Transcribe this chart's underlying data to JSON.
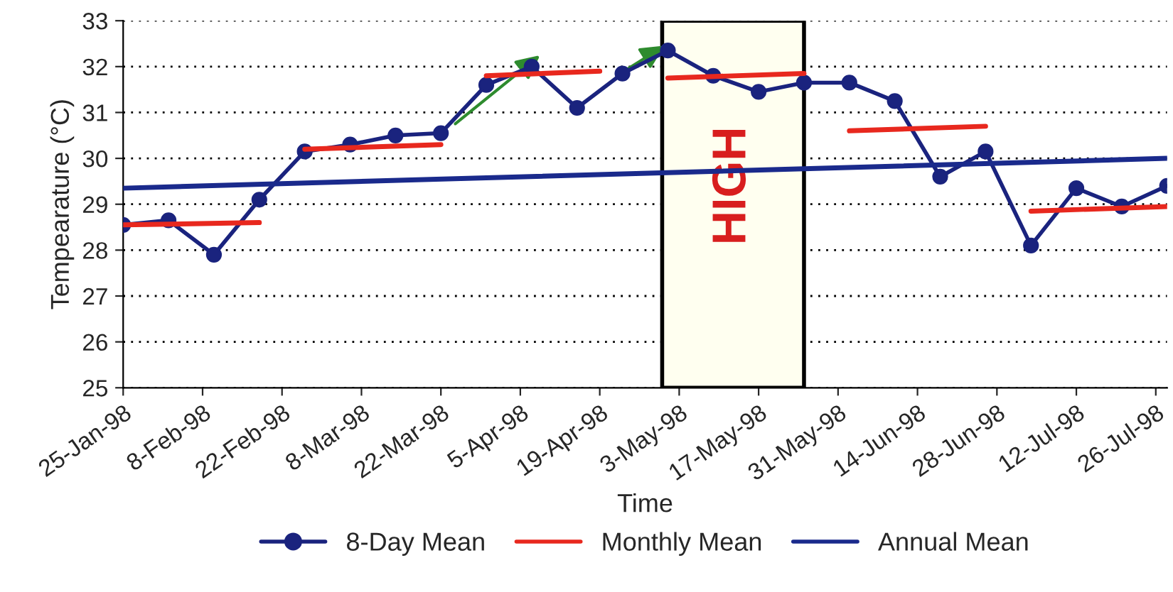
{
  "chart_data": {
    "type": "line",
    "xlabel": "Time",
    "ylabel": "Tempearature (°C)",
    "series": [
      {
        "name": "8-Day Mean",
        "color": "#1a237e",
        "marker": "circle",
        "x": [
          "1998-01-25",
          "1998-02-02",
          "1998-02-10",
          "1998-02-18",
          "1998-02-26",
          "1998-03-06",
          "1998-03-14",
          "1998-03-22",
          "1998-03-30",
          "1998-04-07",
          "1998-04-15",
          "1998-04-23",
          "1998-05-01",
          "1998-05-09",
          "1998-05-17",
          "1998-05-25",
          "1998-06-02",
          "1998-06-10",
          "1998-06-18",
          "1998-06-26",
          "1998-07-04",
          "1998-07-12",
          "1998-07-20",
          "1998-07-28"
        ],
        "values": [
          28.55,
          28.65,
          27.9,
          29.1,
          30.15,
          30.3,
          30.5,
          30.55,
          31.6,
          32.0,
          31.1,
          31.85,
          32.35,
          31.8,
          31.45,
          31.65,
          31.65,
          31.25,
          29.6,
          30.15,
          28.1,
          29.35,
          28.95,
          29.4
        ]
      },
      {
        "name": "Monthly Mean",
        "color": "#e8281e",
        "x": [
          "1998-01-25",
          "1998-02-18",
          "1998-02-22",
          "1998-02-26",
          "1998-03-22",
          "1998-03-26",
          "1998-03-30",
          "1998-04-19",
          "1998-04-25",
          "1998-05-01",
          "1998-05-25",
          "1998-05-28",
          "1998-06-02",
          "1998-06-26",
          "1998-06-29",
          "1998-07-04",
          "1998-07-28"
        ],
        "values": [
          28.55,
          28.6,
          null,
          30.2,
          30.3,
          null,
          31.8,
          31.9,
          null,
          31.75,
          31.85,
          null,
          30.6,
          30.7,
          null,
          28.85,
          28.95
        ]
      },
      {
        "name": "Annual Mean",
        "color": "#1a2a8c",
        "x": [
          "1998-01-25",
          "1998-07-28"
        ],
        "values": [
          29.35,
          30.0
        ]
      }
    ],
    "xlim": [
      "1998-01-25",
      "1998-07-28"
    ],
    "xticks": [
      {
        "value": "1998-01-25",
        "label": "25-Jan-98"
      },
      {
        "value": "1998-02-08",
        "label": "8-Feb-98"
      },
      {
        "value": "1998-02-22",
        "label": "22-Feb-98"
      },
      {
        "value": "1998-03-08",
        "label": "8-Mar-98"
      },
      {
        "value": "1998-03-22",
        "label": "22-Mar-98"
      },
      {
        "value": "1998-04-05",
        "label": "5-Apr-98"
      },
      {
        "value": "1998-04-19",
        "label": "19-Apr-98"
      },
      {
        "value": "1998-05-03",
        "label": "3-May-98"
      },
      {
        "value": "1998-05-17",
        "label": "17-May-98"
      },
      {
        "value": "1998-05-31",
        "label": "31-May-98"
      },
      {
        "value": "1998-06-14",
        "label": "14-Jun-98"
      },
      {
        "value": "1998-06-28",
        "label": "28-Jun-98"
      },
      {
        "value": "1998-07-12",
        "label": "12-Jul-98"
      },
      {
        "value": "1998-07-26",
        "label": "26-Jul-98"
      }
    ],
    "ylim": [
      25,
      33
    ],
    "yticks": [
      25,
      26,
      27,
      28,
      29,
      30,
      31,
      32,
      33
    ],
    "bands": [
      {
        "axis": "x",
        "from": "1998-04-30",
        "to": "1998-05-25",
        "label": "HIGH",
        "color": "#fffff0"
      }
    ],
    "grid": "y",
    "legend": "bottom"
  }
}
